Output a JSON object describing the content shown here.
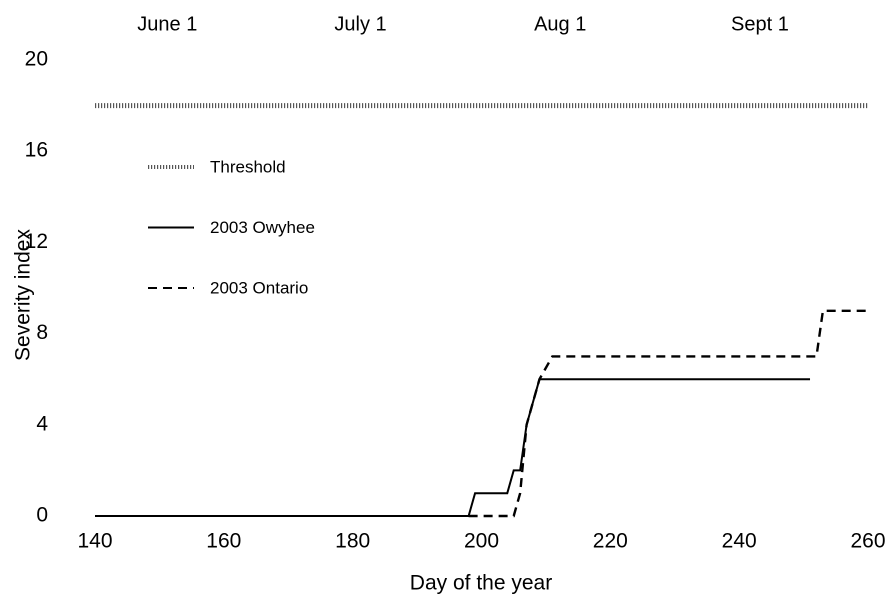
{
  "chart_data": {
    "type": "line",
    "x_label": "Day of the year",
    "y_label": "Severity index",
    "xlim": [
      140,
      260
    ],
    "xticks": [
      140,
      160,
      180,
      200,
      220,
      240,
      260
    ],
    "ylim": [
      0,
      20
    ],
    "yticks": [
      0,
      4,
      8,
      12,
      16,
      20
    ],
    "x2lim": [
      140,
      260
    ],
    "x2ticks": [
      {
        "value": 152,
        "label": "June 1"
      },
      {
        "value": 182,
        "label": "July 1"
      },
      {
        "value": 213,
        "label": "Aug 1"
      },
      {
        "value": 244,
        "label": "Sept 1"
      }
    ],
    "grid": false,
    "legend": "upper left",
    "series": [
      {
        "name": "Threshold",
        "color": "#555555",
        "style": "dotted",
        "x": [
          140,
          260
        ],
        "values": [
          18,
          18
        ]
      },
      {
        "name": "2003 Owyhee",
        "color": "#000000",
        "style": "solid",
        "x": [
          140,
          198,
          199,
          204,
          205,
          206,
          207,
          208,
          209,
          251
        ],
        "values": [
          0,
          0,
          1,
          1,
          2,
          2,
          4,
          5,
          6,
          6
        ]
      },
      {
        "name": "2003 Ontario",
        "color": "#000000",
        "style": "dashed",
        "x": [
          198,
          205,
          206,
          207,
          208,
          209,
          211,
          252,
          253,
          260
        ],
        "values": [
          0,
          0,
          1,
          4,
          5,
          6,
          7,
          7,
          9,
          9
        ]
      }
    ]
  }
}
